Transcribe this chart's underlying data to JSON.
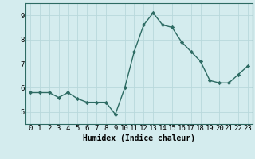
{
  "x": [
    0,
    1,
    2,
    3,
    4,
    5,
    6,
    7,
    8,
    9,
    10,
    11,
    12,
    13,
    14,
    15,
    16,
    17,
    18,
    19,
    20,
    21,
    22,
    23
  ],
  "y": [
    5.8,
    5.8,
    5.8,
    5.6,
    5.8,
    5.55,
    5.4,
    5.4,
    5.4,
    4.9,
    6.0,
    7.5,
    8.6,
    9.1,
    8.6,
    8.5,
    7.9,
    7.5,
    7.1,
    6.3,
    6.2,
    6.2,
    6.55,
    6.9
  ],
  "xlabel": "Humidex (Indice chaleur)",
  "xlim": [
    -0.5,
    23.5
  ],
  "ylim": [
    4.5,
    9.5
  ],
  "yticks": [
    5,
    6,
    7,
    8,
    9
  ],
  "xticks": [
    0,
    1,
    2,
    3,
    4,
    5,
    6,
    7,
    8,
    9,
    10,
    11,
    12,
    13,
    14,
    15,
    16,
    17,
    18,
    19,
    20,
    21,
    22,
    23
  ],
  "bg_color": "#d4ecee",
  "line_color": "#2d6b63",
  "grid_color": "#b8d8db",
  "marker": "D",
  "marker_size": 2.2,
  "line_width": 1.0,
  "xlabel_fontsize": 7,
  "tick_fontsize": 6.5
}
